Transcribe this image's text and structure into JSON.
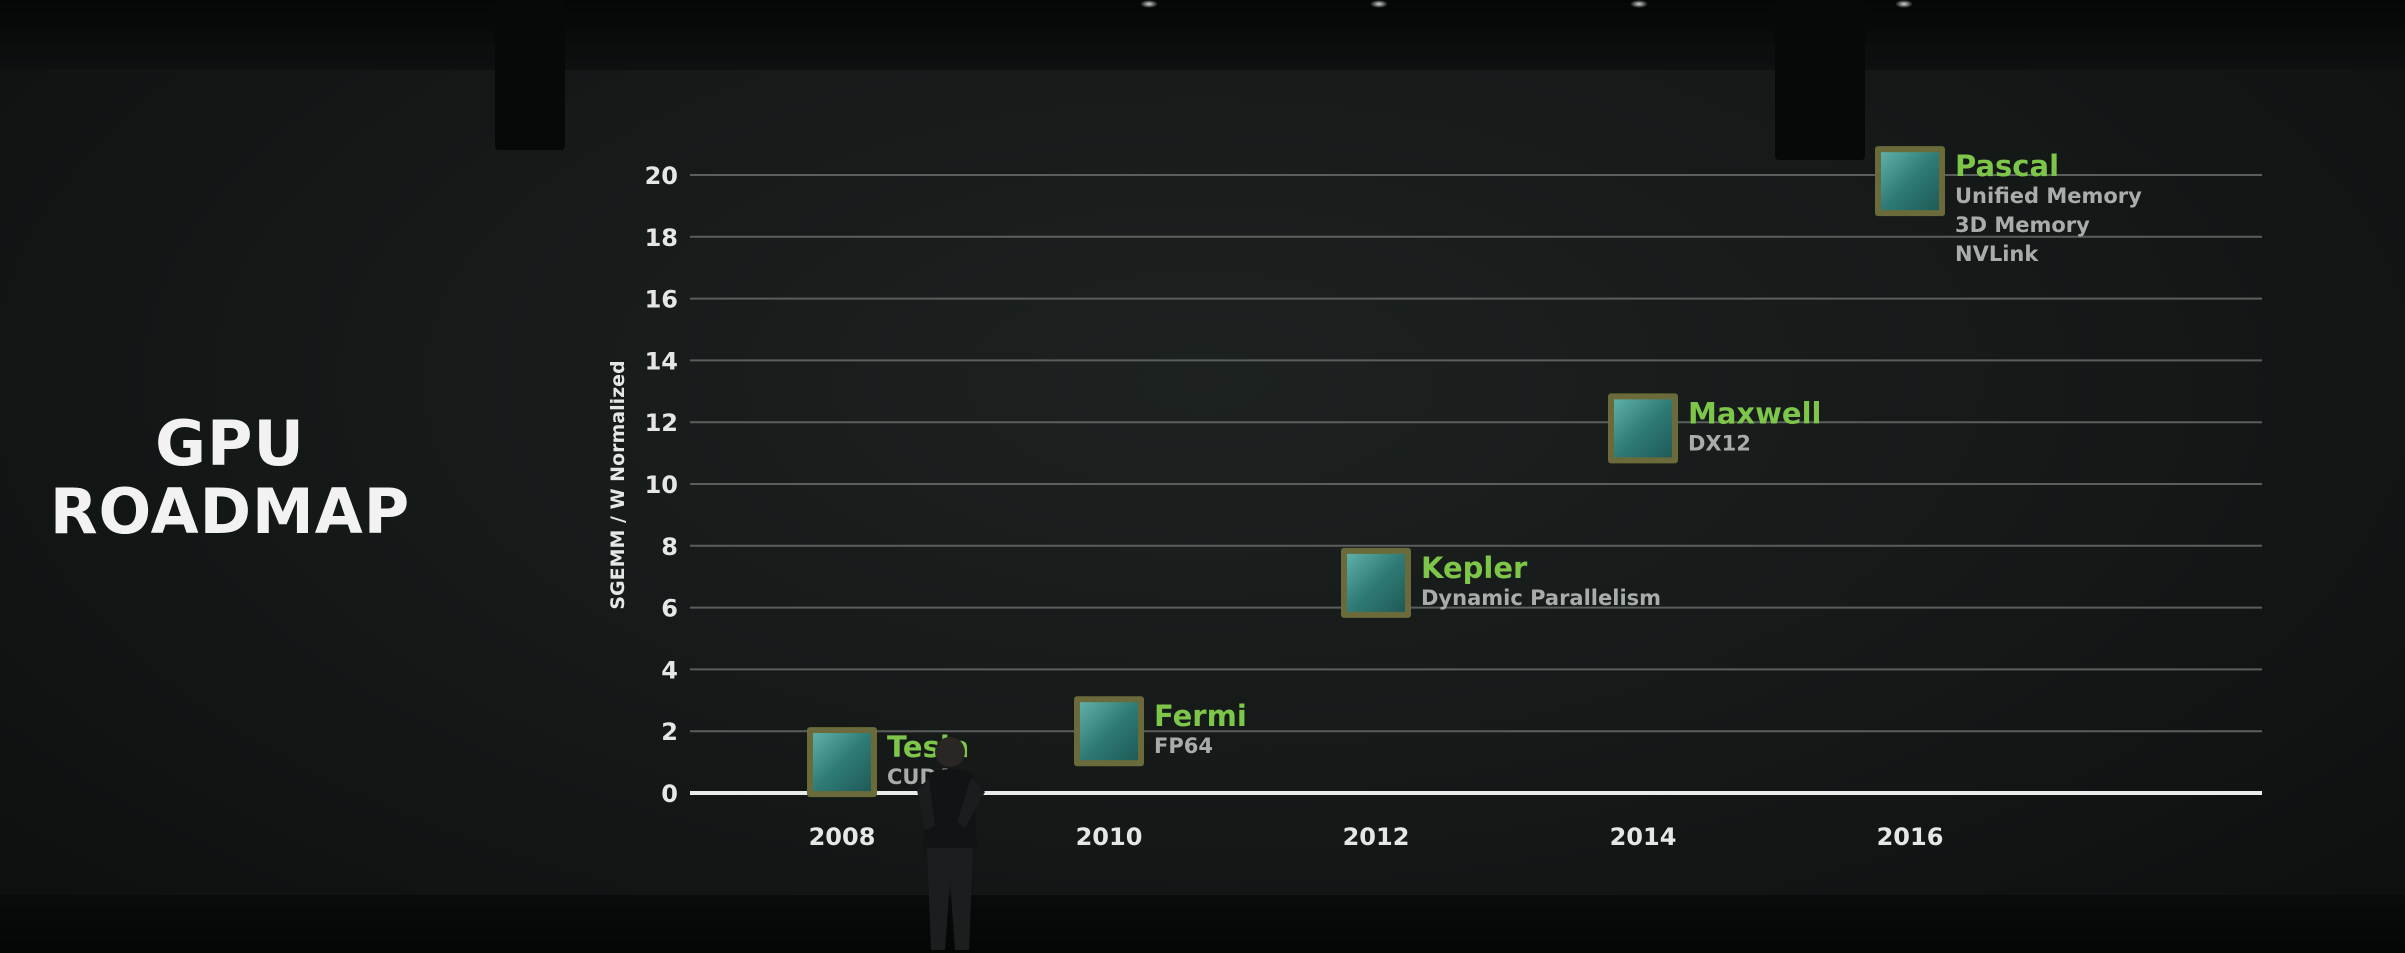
{
  "slide": {
    "title_lines": [
      "GPU",
      "ROADMAP"
    ]
  },
  "colors": {
    "background": "#141817",
    "gridline": "#5a5e5c",
    "tick_text": "#e6e6e6",
    "architecture_name": "#7ec64a",
    "feature_text": "#a8adab",
    "chip_icon": "#3f8a86"
  },
  "chart_data": {
    "type": "scatter",
    "title": "GPU ROADMAP",
    "xlabel": "",
    "ylabel": "SGEMM / W Normalized",
    "xlim": [
      2007.5,
      2018
    ],
    "ylim": [
      0,
      20
    ],
    "x_ticks": [
      "2008",
      "2010",
      "2012",
      "2014",
      "2016"
    ],
    "y_ticks": [
      "0",
      "2",
      "4",
      "6",
      "8",
      "10",
      "12",
      "14",
      "16",
      "18",
      "20"
    ],
    "grid": true,
    "legend": "none",
    "points": [
      {
        "name": "Tesla",
        "x": 2008,
        "y": 1,
        "features": [
          "CUDA"
        ]
      },
      {
        "name": "Fermi",
        "x": 2010,
        "y": 2,
        "features": [
          "FP64"
        ]
      },
      {
        "name": "Kepler",
        "x": 2012,
        "y": 6.8,
        "features": [
          "Dynamic Parallelism"
        ]
      },
      {
        "name": "Maxwell",
        "x": 2014,
        "y": 11.8,
        "features": [
          "DX12"
        ]
      },
      {
        "name": "Pascal",
        "x": 2016,
        "y": 19.8,
        "features": [
          "Unified Memory",
          "3D Memory",
          "NVLink"
        ]
      }
    ]
  }
}
